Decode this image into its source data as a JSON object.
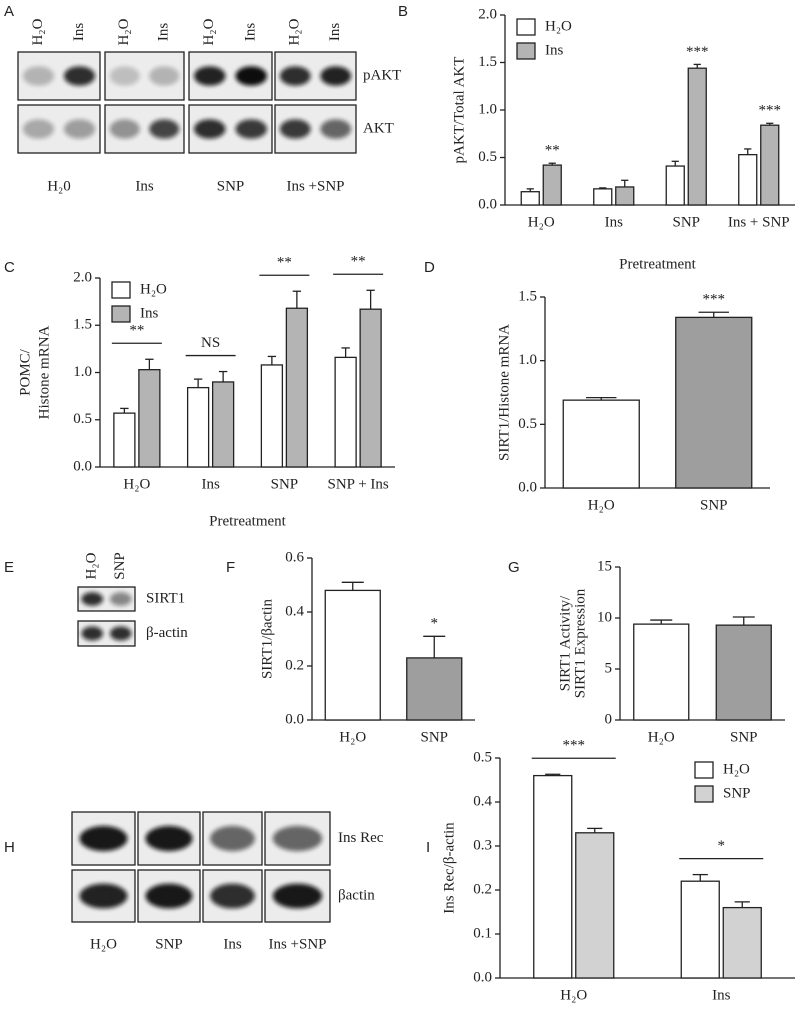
{
  "chart_data": [
    {
      "type": "bar",
      "label": "B",
      "ylabel": "pAKT/Total AKT",
      "categories": [
        "H₂O",
        "Ins",
        "SNP",
        "Ins + SNP"
      ],
      "series": [
        {
          "name": "H₂O",
          "color": "#ffffff",
          "values": [
            0.14,
            0.17,
            0.41,
            0.53
          ],
          "errors": [
            0.03,
            0.01,
            0.05,
            0.06
          ]
        },
        {
          "name": "Ins",
          "color": "#b4b4b4",
          "values": [
            0.42,
            0.19,
            1.44,
            0.84
          ],
          "errors": [
            0.02,
            0.07,
            0.04,
            0.02
          ],
          "significance": [
            "**",
            null,
            "***",
            "***"
          ]
        }
      ],
      "ylim": [
        0,
        2
      ],
      "yticks": [
        {
          "value": 0,
          "label": "0.0"
        },
        0.5,
        {
          "value": 1,
          "label": "1.0"
        },
        1.5,
        {
          "value": 2,
          "label": "2.0"
        }
      ],
      "legend": "upper left"
    },
    {
      "type": "bar",
      "label": "C",
      "ylabel": [
        "POMC/",
        "Histone mRNA"
      ],
      "xlabel": "Pretreatment",
      "categories": [
        "H₂O",
        "Ins",
        "SNP",
        "SNP + Ins"
      ],
      "series": [
        {
          "name": "H₂O",
          "color": "#ffffff",
          "values": [
            0.57,
            0.84,
            1.08,
            1.16
          ],
          "errors": [
            0.05,
            0.09,
            0.09,
            0.1
          ]
        },
        {
          "name": "Ins",
          "color": "#b4b4b4",
          "values": [
            1.03,
            0.9,
            1.68,
            1.67
          ],
          "errors": [
            0.11,
            0.11,
            0.18,
            0.2
          ]
        }
      ],
      "comparisons": [
        "**",
        "NS",
        "**",
        "**"
      ],
      "ylim": [
        0,
        2
      ],
      "yticks": [
        {
          "value": 0,
          "label": "0.0"
        },
        0.5,
        {
          "value": 1,
          "label": "1.0"
        },
        1.5,
        {
          "value": 2,
          "label": "2.0"
        }
      ],
      "legend": "upper left"
    },
    {
      "type": "bar",
      "label": "D",
      "title": "Pretreatment",
      "ylabel": "SIRT1/Histone mRNA",
      "categories": [
        "H₂O",
        "SNP"
      ],
      "values": [
        0.69,
        1.34
      ],
      "errors": [
        0.02,
        0.04
      ],
      "colors": [
        "#ffffff",
        "#9e9e9e"
      ],
      "significance": [
        null,
        "***"
      ],
      "ylim": [
        0,
        1.5
      ],
      "yticks": [
        {
          "value": 0,
          "label": "0.0"
        },
        0.5,
        {
          "value": 1,
          "label": "1.0"
        },
        1.5
      ]
    },
    {
      "type": "bar",
      "label": "F",
      "ylabel": "SIRT1/βactin",
      "categories": [
        "H₂O",
        "SNP"
      ],
      "values": [
        0.48,
        0.23
      ],
      "errors": [
        0.03,
        0.08
      ],
      "colors": [
        "#ffffff",
        "#9e9e9e"
      ],
      "significance": [
        null,
        "*"
      ],
      "ylim": [
        0,
        0.6
      ],
      "yticks": [
        {
          "value": 0,
          "label": "0.0"
        },
        0.2,
        0.4,
        0.6
      ]
    },
    {
      "type": "bar",
      "label": "G",
      "ylabel": [
        "SIRT1 Activity/",
        "SIRT1 Expression"
      ],
      "categories": [
        "H₂O",
        "SNP"
      ],
      "values": [
        9.4,
        9.3
      ],
      "errors": [
        0.4,
        0.8
      ],
      "colors": [
        "#ffffff",
        "#9e9e9e"
      ],
      "ylim": [
        0,
        15
      ],
      "yticks": [
        0,
        5,
        10,
        15
      ]
    },
    {
      "type": "bar",
      "label": "I",
      "ylabel": "Ins Rec/β-actin",
      "categories": [
        "H₂O",
        "Ins"
      ],
      "series": [
        {
          "name": "H₂O",
          "color": "#ffffff",
          "values": [
            0.46,
            0.22
          ],
          "errors": [
            0.003,
            0.015
          ]
        },
        {
          "name": "SNP",
          "color": "#d2d2d2",
          "values": [
            0.33,
            0.16
          ],
          "errors": [
            0.01,
            0.013
          ]
        }
      ],
      "comparisons": [
        "***",
        "*"
      ],
      "ylim": [
        0,
        0.5
      ],
      "yticks": [
        {
          "value": 0,
          "label": "0.0"
        },
        0.1,
        0.2,
        0.3,
        0.4,
        0.5
      ],
      "legend": "upper right"
    }
  ],
  "blots": [
    {
      "label": "A",
      "lanes": [
        "H₂O",
        "Ins",
        "H₂O",
        "Ins",
        "H₂O",
        "Ins",
        "H₂O",
        "Ins"
      ],
      "rows": [
        "pAKT",
        "AKT"
      ],
      "groups": [
        "H₂0",
        "Ins",
        "SNP",
        "Ins +SNP"
      ]
    },
    {
      "label": "E",
      "lanes": [
        "H₂O",
        "SNP"
      ],
      "rows": [
        "SIRT1",
        "β-actin"
      ]
    },
    {
      "label": "H",
      "rows": [
        "Ins Rec",
        "βactin"
      ],
      "groups": [
        "H₂O",
        "SNP",
        "Ins",
        "Ins +SNP"
      ]
    }
  ]
}
